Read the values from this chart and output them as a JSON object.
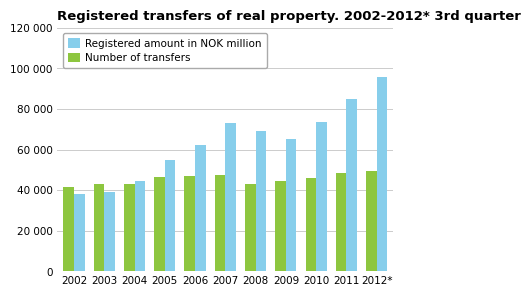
{
  "title": "Registered transfers of real property. 2002-2012* 3rd quarter",
  "years": [
    "2002",
    "2003",
    "2004",
    "2005",
    "2006",
    "2007",
    "2008",
    "2009",
    "2010",
    "2011",
    "2012*"
  ],
  "registered_amount": [
    38000,
    39000,
    44500,
    55000,
    62000,
    73000,
    69000,
    65000,
    73500,
    85000,
    96000
  ],
  "num_transfers": [
    41500,
    43000,
    43000,
    46500,
    47000,
    47500,
    43000,
    44500,
    46000,
    48500,
    49500
  ],
  "bar_color_amount": "#87CEEB",
  "bar_color_transfers": "#8DC63F",
  "legend_amount": "Registered amount in NOK million",
  "legend_transfers": "Number of transfers",
  "ylim": [
    0,
    120000
  ],
  "yticks": [
    0,
    20000,
    40000,
    60000,
    80000,
    100000,
    120000
  ],
  "ytick_labels": [
    "0",
    "20 000",
    "40 000",
    "60 000",
    "80 000",
    "100 000",
    "120 000"
  ],
  "background_color": "#ffffff",
  "grid_color": "#cccccc",
  "bar_width": 0.35,
  "title_fontsize": 9.5,
  "legend_fontsize": 7.5,
  "tick_fontsize": 7.5
}
